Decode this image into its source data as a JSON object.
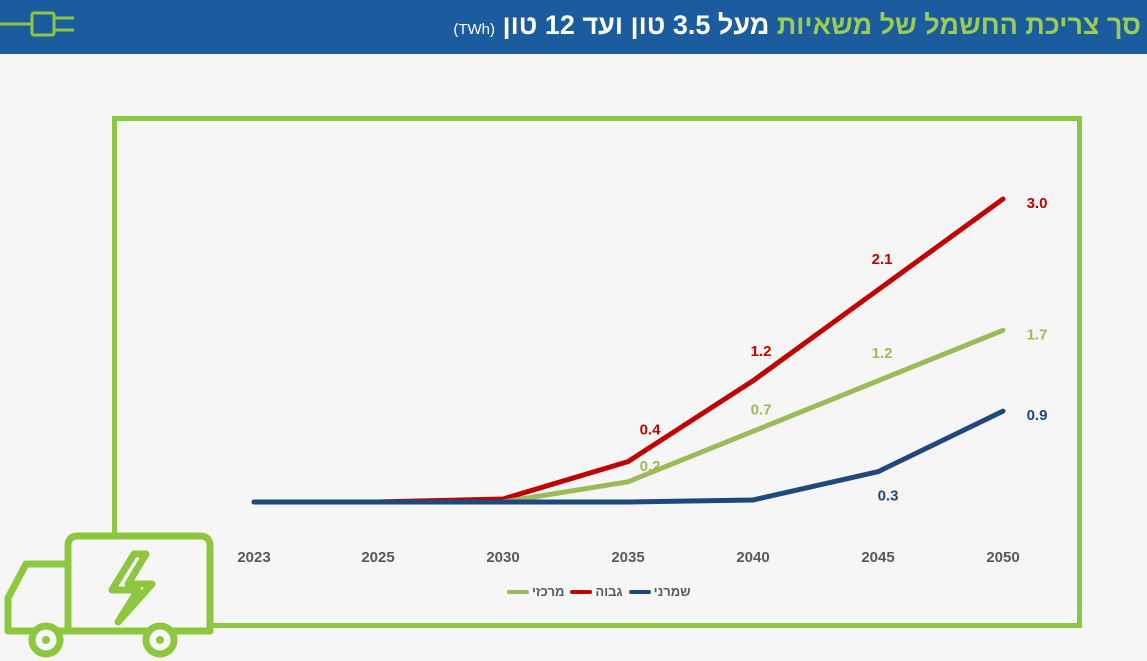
{
  "header": {
    "title_green": "סך צריכת החשמל של משאיות",
    "title_white": "מעל 3.5 טון ועד 12 טון",
    "title_unit": "(TWh)",
    "icons": [
      "plug-icon",
      "truck-icon"
    ]
  },
  "colors": {
    "header_bg": "#1a5c9e",
    "accent_green": "#9ccc52",
    "frame_green": "#8dc63f",
    "central": "#9bbb59",
    "high": "#c00000",
    "conservative": "#1f497d"
  },
  "chart_data": {
    "type": "line",
    "categories": [
      "2023",
      "2025",
      "2030",
      "2035",
      "2040",
      "2045",
      "2050"
    ],
    "series": [
      {
        "name": "מרכזי",
        "values": [
          0,
          0,
          0,
          0.2,
          0.7,
          1.2,
          1.7
        ],
        "labels": [
          "",
          "",
          "",
          "0.2",
          "0.7",
          "1.2",
          "1.7"
        ]
      },
      {
        "name": "גבוה",
        "values": [
          0,
          0,
          0.03,
          0.4,
          1.2,
          2.1,
          3.0
        ],
        "labels": [
          "",
          "",
          "",
          "0.4",
          "1.2",
          "2.1",
          "3.0"
        ]
      },
      {
        "name": "שמרני",
        "values": [
          0,
          0,
          0,
          0,
          0.02,
          0.3,
          0.9
        ],
        "labels": [
          "",
          "",
          "",
          "",
          "",
          "0.3",
          "0.9"
        ]
      }
    ],
    "ylim": [
      0,
      3.0
    ],
    "grid": false,
    "legend": "bottom-center"
  }
}
